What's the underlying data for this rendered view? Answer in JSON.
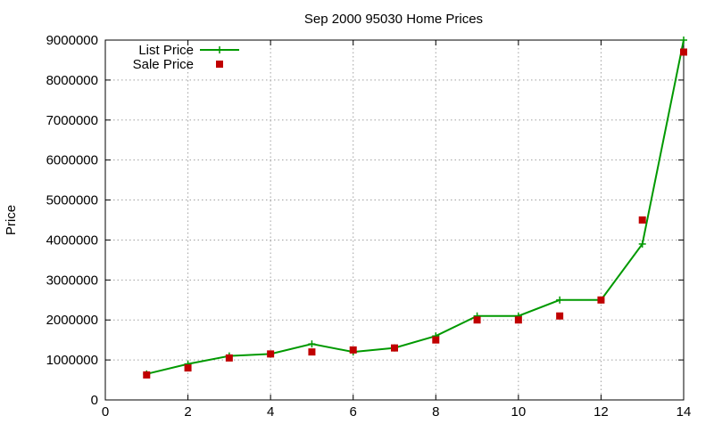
{
  "chart_data": {
    "type": "line",
    "title": "Sep 2000 95030 Home Prices",
    "xlabel": "",
    "ylabel": "Price",
    "xlim": [
      0,
      14
    ],
    "ylim": [
      0,
      9000000
    ],
    "x_ticks": [
      0,
      2,
      4,
      6,
      8,
      10,
      12,
      14
    ],
    "x_tick_labels": [
      "0",
      "2",
      "4",
      "6",
      "8",
      "10",
      "12",
      "14"
    ],
    "y_ticks": [
      0,
      1000000,
      2000000,
      3000000,
      4000000,
      5000000,
      6000000,
      7000000,
      8000000,
      9000000
    ],
    "y_tick_labels": [
      "0",
      "1000000",
      "2000000",
      "3000000",
      "4000000",
      "5000000",
      "6000000",
      "7000000",
      "8000000",
      "9000000"
    ],
    "grid": true,
    "legend_position": "top-left",
    "series": [
      {
        "name": "List Price",
        "style": "lines with plus markers",
        "color": "#009900",
        "x": [
          1,
          2,
          3,
          4,
          5,
          6,
          7,
          8,
          9,
          10,
          11,
          12,
          13,
          14
        ],
        "y": [
          650000,
          900000,
          1100000,
          1150000,
          1400000,
          1200000,
          1300000,
          1600000,
          2100000,
          2100000,
          2500000,
          2500000,
          3900000,
          9000000
        ]
      },
      {
        "name": "Sale Price",
        "style": "square points",
        "color": "#c00000",
        "x": [
          1,
          2,
          3,
          4,
          5,
          6,
          7,
          8,
          9,
          10,
          11,
          12,
          13,
          14
        ],
        "y": [
          625000,
          800000,
          1050000,
          1150000,
          1200000,
          1250000,
          1300000,
          1500000,
          2000000,
          2000000,
          2100000,
          2500000,
          4500000,
          8700000
        ]
      }
    ]
  }
}
